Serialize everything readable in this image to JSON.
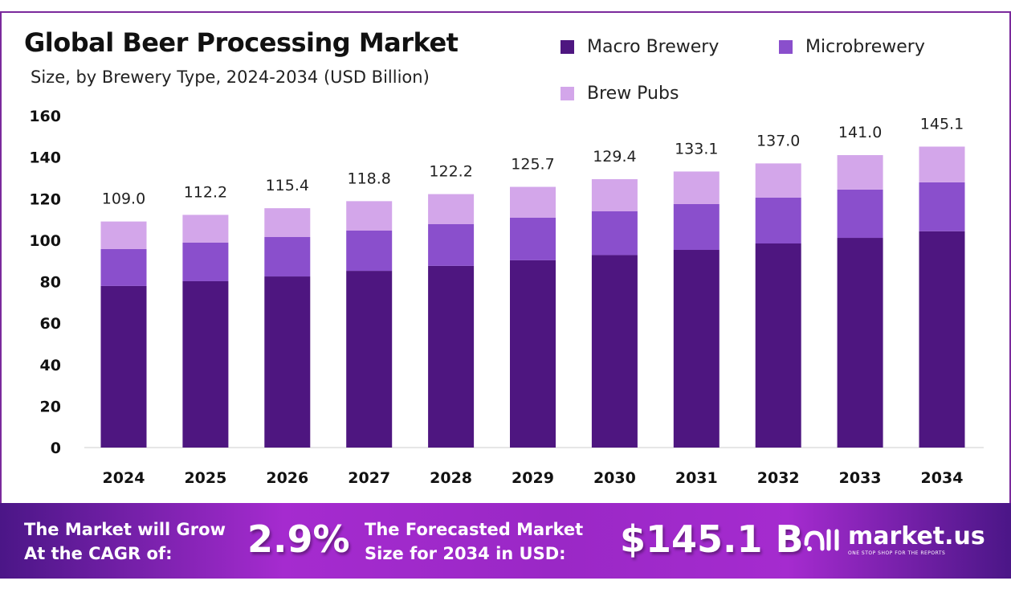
{
  "chart_data": {
    "type": "bar",
    "stacked": true,
    "title": "Global Beer Processing Market",
    "subtitle": "Size, by Brewery  Type, 2024-2034 (USD Billion)",
    "categories": [
      "2024",
      "2025",
      "2026",
      "2027",
      "2028",
      "2029",
      "2030",
      "2031",
      "2032",
      "2033",
      "2034"
    ],
    "series": [
      {
        "name": "Macro Brewery",
        "color": "#4e1680",
        "values": [
          77.9,
          80.2,
          82.5,
          85.2,
          87.6,
          90.3,
          92.8,
          95.3,
          98.4,
          101.1,
          104.3
        ]
      },
      {
        "name": "Microbrewery",
        "color": "#8a4fcc",
        "values": [
          17.8,
          18.6,
          19.0,
          19.4,
          20.1,
          20.5,
          21.1,
          22.1,
          22.1,
          23.3,
          23.6
        ]
      },
      {
        "name": "Brew Pubs",
        "color": "#d3a6ea",
        "values": [
          13.3,
          13.4,
          13.9,
          14.2,
          14.5,
          14.9,
          15.5,
          15.7,
          16.5,
          16.6,
          17.2
        ]
      }
    ],
    "totals": [
      "109.0",
      "112.2",
      "115.4",
      "118.8",
      "122.2",
      "125.7",
      "129.4",
      "133.1",
      "137.0",
      "141.0",
      "145.1"
    ],
    "ylim": [
      0,
      160
    ],
    "yticks": [
      "0",
      "20",
      "40",
      "60",
      "80",
      "100",
      "120",
      "140",
      "160"
    ],
    "grid": false,
    "legend_position": "top-right"
  },
  "banner": {
    "cagr_label_1": "The Market will Grow",
    "cagr_label_2": "At the CAGR of:",
    "cagr_value": "2.9%",
    "forecast_label_1": "The Forecasted Market",
    "forecast_label_2": "Size for 2034 in USD:",
    "forecast_value": "$145.1 B",
    "logo_name": "market.us",
    "logo_tagline": "ONE STOP SHOP FOR THE REPORTS"
  }
}
